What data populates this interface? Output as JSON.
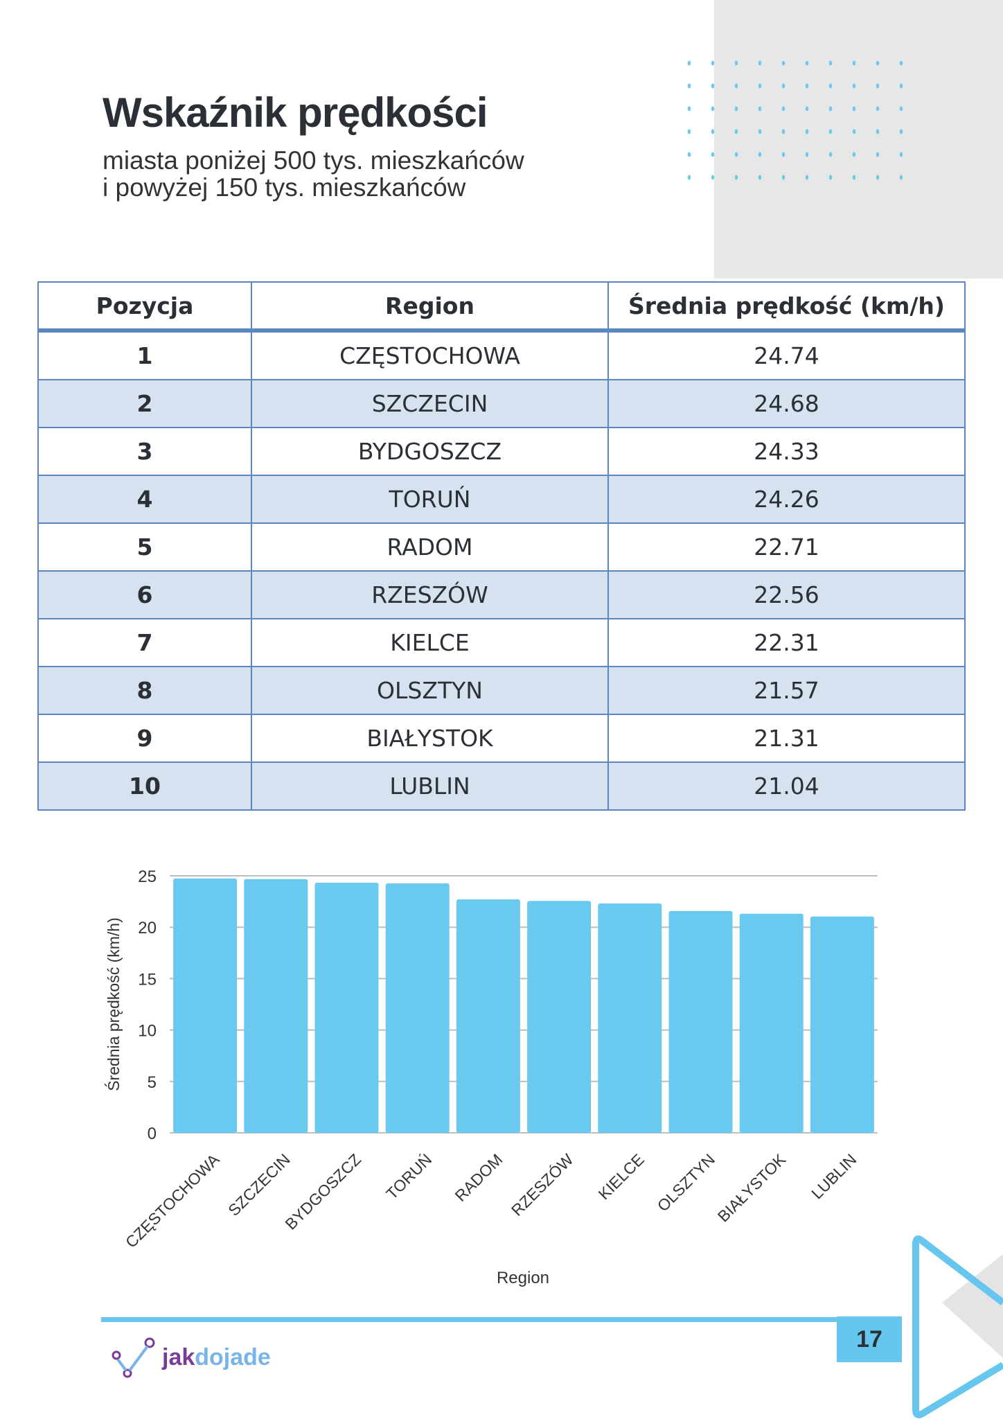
{
  "header": {
    "title": "Wskaźnik prędkości",
    "subtitle_line1": "miasta poniżej 500 tys. mieszkańców",
    "subtitle_line2": "i powyżej 150 tys. mieszkańców"
  },
  "table": {
    "columns": [
      "Pozycja",
      "Region",
      "Średnia prędkość (km/h)"
    ],
    "rows": [
      [
        "1",
        "CZĘSTOCHOWA",
        "24.74"
      ],
      [
        "2",
        "SZCZECIN",
        "24.68"
      ],
      [
        "3",
        "BYDGOSZCZ",
        "24.33"
      ],
      [
        "4",
        "TORUŃ",
        "24.26"
      ],
      [
        "5",
        "RADOM",
        "22.71"
      ],
      [
        "6",
        "RZESZÓW",
        "22.56"
      ],
      [
        "7",
        "KIELCE",
        "22.31"
      ],
      [
        "8",
        "OLSZTYN",
        "21.57"
      ],
      [
        "9",
        "BIAŁYSTOK",
        "21.31"
      ],
      [
        "10",
        "LUBLIN",
        "21.04"
      ]
    ]
  },
  "chart_data": {
    "type": "bar",
    "categories": [
      "CZĘSTOCHOWA",
      "SZCZECIN",
      "BYDGOSZCZ",
      "TORUŃ",
      "RADOM",
      "RZESZÓW",
      "KIELCE",
      "OLSZTYN",
      "BIAŁYSTOK",
      "LUBLIN"
    ],
    "values": [
      24.74,
      24.68,
      24.33,
      24.26,
      22.71,
      22.56,
      22.31,
      21.57,
      21.31,
      21.04
    ],
    "xlabel": "Region",
    "ylabel": "Średnia prędkość (km/h)",
    "ylim": [
      0,
      25
    ],
    "yticks": [
      "0",
      "5",
      "10",
      "15",
      "20",
      "25"
    ],
    "grid": true,
    "bar_color": "#6ac9ef"
  },
  "footer": {
    "page_number": "17",
    "logo_jak": "jak",
    "logo_dojade": "dojade",
    "accent_color": "#67c6ee"
  }
}
